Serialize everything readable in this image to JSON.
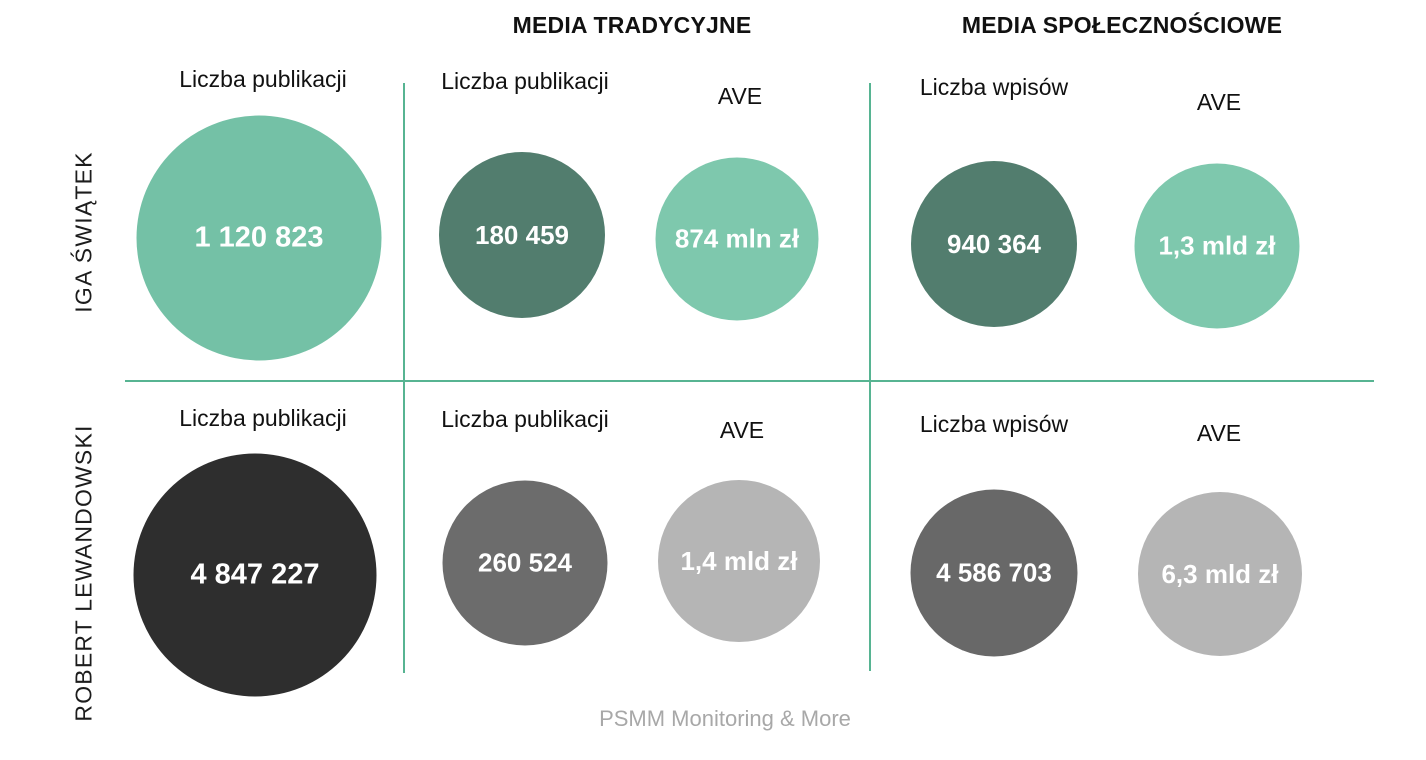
{
  "headers": {
    "traditional": "MEDIA TRADYCYJNE",
    "social": "MEDIA SPOŁECZNOŚCIOWE"
  },
  "rows": {
    "swiatek": {
      "label": "IGA ŚWIĄTEK",
      "total": {
        "caption": "Liczba publikacji",
        "value": "1 120 823"
      },
      "traditional": {
        "publications_caption": "Liczba publikacji",
        "publications_value": "180 459",
        "ave_caption": "AVE",
        "ave_value": "874 mln zł"
      },
      "social": {
        "posts_caption": "Liczba wpisów",
        "posts_value": "940 364",
        "ave_caption": "AVE",
        "ave_value": "1,3 mld zł"
      }
    },
    "lewandowski": {
      "label": "ROBERT LEWANDOWSKI",
      "total": {
        "caption": "Liczba publikacji",
        "value": "4 847 227"
      },
      "traditional": {
        "publications_caption": "Liczba publikacji",
        "publications_value": "260 524",
        "ave_caption": "AVE",
        "ave_value": "1,4 mld zł"
      },
      "social": {
        "posts_caption": "Liczba wpisów",
        "posts_value": "4 586 703",
        "ave_caption": "AVE",
        "ave_value": "6,3 mld zł"
      }
    }
  },
  "footer": {
    "source": "PSMM Monitoring & More"
  },
  "colors": {
    "teal_big": "#74c1a6",
    "teal_light": "#7ec8ad",
    "teal_dark": "#527d6e",
    "near_black": "#2e2e2e",
    "gray_mid": "#6c6c6c",
    "gray_light": "#b5b5b5",
    "divider": "#57b492",
    "footer_text": "#a8a8a8"
  },
  "chart_data": {
    "type": "table",
    "title": "",
    "column_groups": [
      "",
      "MEDIA TRADYCYJNE",
      "MEDIA TRADYCYJNE",
      "MEDIA SPOŁECZNOŚCIOWE",
      "MEDIA SPOŁECZNOŚCIOWE"
    ],
    "columns": [
      "Liczba publikacji",
      "Liczba publikacji",
      "AVE",
      "Liczba wpisów",
      "AVE"
    ],
    "rows": [
      {
        "name": "IGA ŚWIĄTEK",
        "values_display": [
          "1 120 823",
          "180 459",
          "874 mln zł",
          "940 364",
          "1,3 mld zł"
        ],
        "values_numeric": [
          1120823,
          180459,
          874000000,
          940364,
          1300000000
        ]
      },
      {
        "name": "ROBERT LEWANDOWSKI",
        "values_display": [
          "4 847 227",
          "260 524",
          "1,4 mld zł",
          "4 586 703",
          "6,3 mld zł"
        ],
        "values_numeric": [
          4847227,
          260524,
          1400000000,
          4586703,
          6300000000
        ]
      }
    ],
    "ave_unit": "zł",
    "source": "PSMM Monitoring & More",
    "layout_hints": {
      "visual": "bubble matrix, 2 rows x 5 columns",
      "row1_palette": "teal",
      "row2_palette": "gray",
      "grid": "teal divider lines between column groups and rows"
    }
  }
}
